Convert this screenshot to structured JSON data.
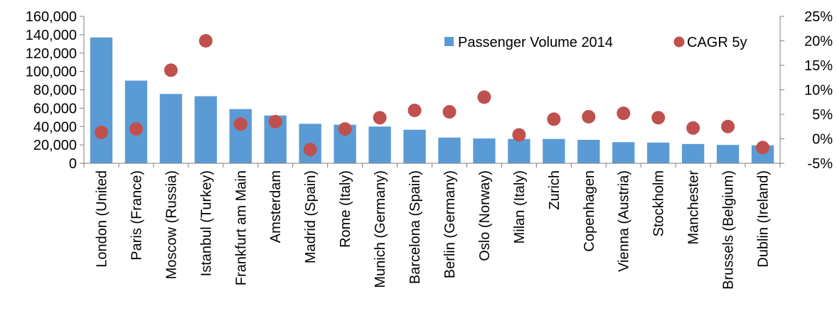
{
  "chart_data": {
    "type": "bar",
    "categories": [
      "London (United",
      "Paris (France)",
      "Moscow (Russia)",
      "Istanbul (Turkey)",
      "Frankfurt am Main",
      "Amsterdam",
      "Madrid (Spain)",
      "Rome (Italy)",
      "Munich (Germany)",
      "Barcelona (Spain)",
      "Berlin (Germany)",
      "Oslo (Norway)",
      "Milan (Italy)",
      "Zurich",
      "Copenhagen",
      "Vienna (Austria)",
      "Stockholm",
      "Manchester",
      "Brussels (Belgium)",
      "Dublin (Ireland)"
    ],
    "series": [
      {
        "name": "Passenger Volume 2014",
        "type": "bar",
        "axis": "left",
        "color": "#5B9BD5",
        "values": [
          137000,
          90000,
          75500,
          73000,
          59000,
          52000,
          43000,
          42000,
          40000,
          36500,
          28000,
          27000,
          26500,
          26500,
          25500,
          23000,
          22500,
          21000,
          20000,
          19500
        ]
      },
      {
        "name": "CAGR 5y",
        "type": "scatter",
        "axis": "right",
        "color": "#C0504D",
        "values": [
          1.3,
          2.0,
          14.0,
          20.0,
          3.0,
          3.5,
          -2.2,
          2.0,
          4.3,
          5.8,
          5.5,
          8.5,
          0.8,
          4.0,
          4.5,
          5.2,
          4.3,
          2.2,
          2.5,
          -1.8
        ]
      }
    ],
    "y_left": {
      "min": 0,
      "max": 160000,
      "step": 20000,
      "tick_labels": [
        "0",
        "20,000",
        "40,000",
        "60,000",
        "80,000",
        "100,000",
        "120,000",
        "140,000",
        "160,000"
      ]
    },
    "y_right": {
      "min": -5,
      "max": 25,
      "step": 5,
      "tick_labels": [
        "-5%",
        "0%",
        "5%",
        "10%",
        "15%",
        "20%",
        "25%"
      ]
    },
    "legend_position": "top-right",
    "grid": false,
    "title": "",
    "xlabel": "",
    "ylabel": ""
  }
}
